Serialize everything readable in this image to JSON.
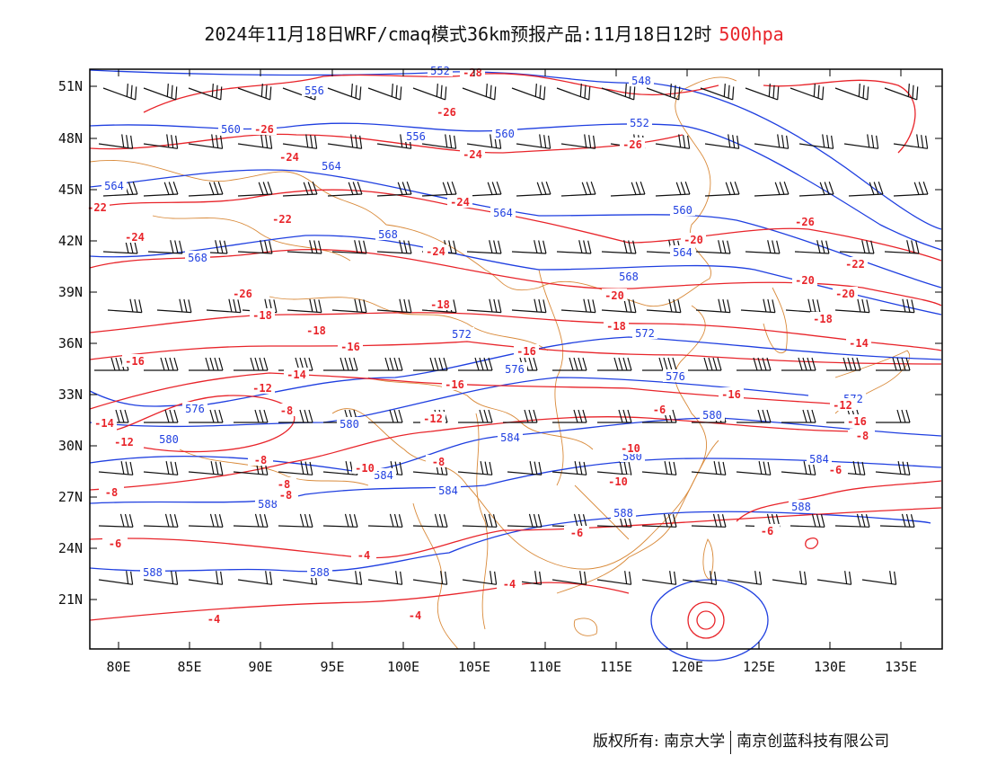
{
  "title": {
    "main": "2024年11月18日WRF/cmaq模式36km预报产品:11月18日12时",
    "level": "500hpa"
  },
  "axes": {
    "lat_labels": [
      "51N",
      "48N",
      "45N",
      "42N",
      "39N",
      "36N",
      "33N",
      "30N",
      "27N",
      "24N",
      "21N"
    ],
    "lon_labels": [
      "80E",
      "85E",
      "90E",
      "95E",
      "100E",
      "105E",
      "110E",
      "115E",
      "120E",
      "125E",
      "130E",
      "135E"
    ]
  },
  "contours": {
    "height_color": "#1f3fe0",
    "temp_color": "#e8242a",
    "border_color": "#d98a3a",
    "wind_color": "#111111",
    "height_labels": [
      "552",
      "556",
      "548",
      "560",
      "552",
      "556",
      "560",
      "564",
      "564",
      "564",
      "560",
      "568",
      "568",
      "564",
      "568",
      "572",
      "572",
      "576",
      "576",
      "572",
      "576",
      "580",
      "580",
      "580",
      "584",
      "580",
      "584",
      "584",
      "584",
      "588",
      "588",
      "588",
      "588",
      "588"
    ],
    "temp_labels": [
      "-28",
      "-26",
      "-26",
      "-26",
      "-24",
      "-24",
      "-22",
      "-26",
      "-22",
      "-24",
      "-24",
      "-20",
      "-22",
      "-24",
      "-26",
      "-20",
      "-20",
      "-20",
      "-18",
      "-18",
      "-18",
      "-18",
      "-18",
      "-16",
      "-16",
      "-16",
      "-14",
      "-14",
      "-16",
      "-12",
      "-16",
      "-14",
      "-12",
      "-8",
      "-6",
      "-12",
      "-12",
      "-10",
      "-10",
      "-16",
      "-14",
      "-8",
      "-8",
      "-8",
      "-8",
      "-10",
      "-6",
      "-8",
      "-6",
      "-4",
      "-6",
      "-6",
      "-4",
      "-4",
      "-4",
      "-8",
      "-6"
    ]
  },
  "footer": {
    "owner_label": "版权所有: 南京大学",
    "company": "南京创蓝科技有限公司"
  }
}
